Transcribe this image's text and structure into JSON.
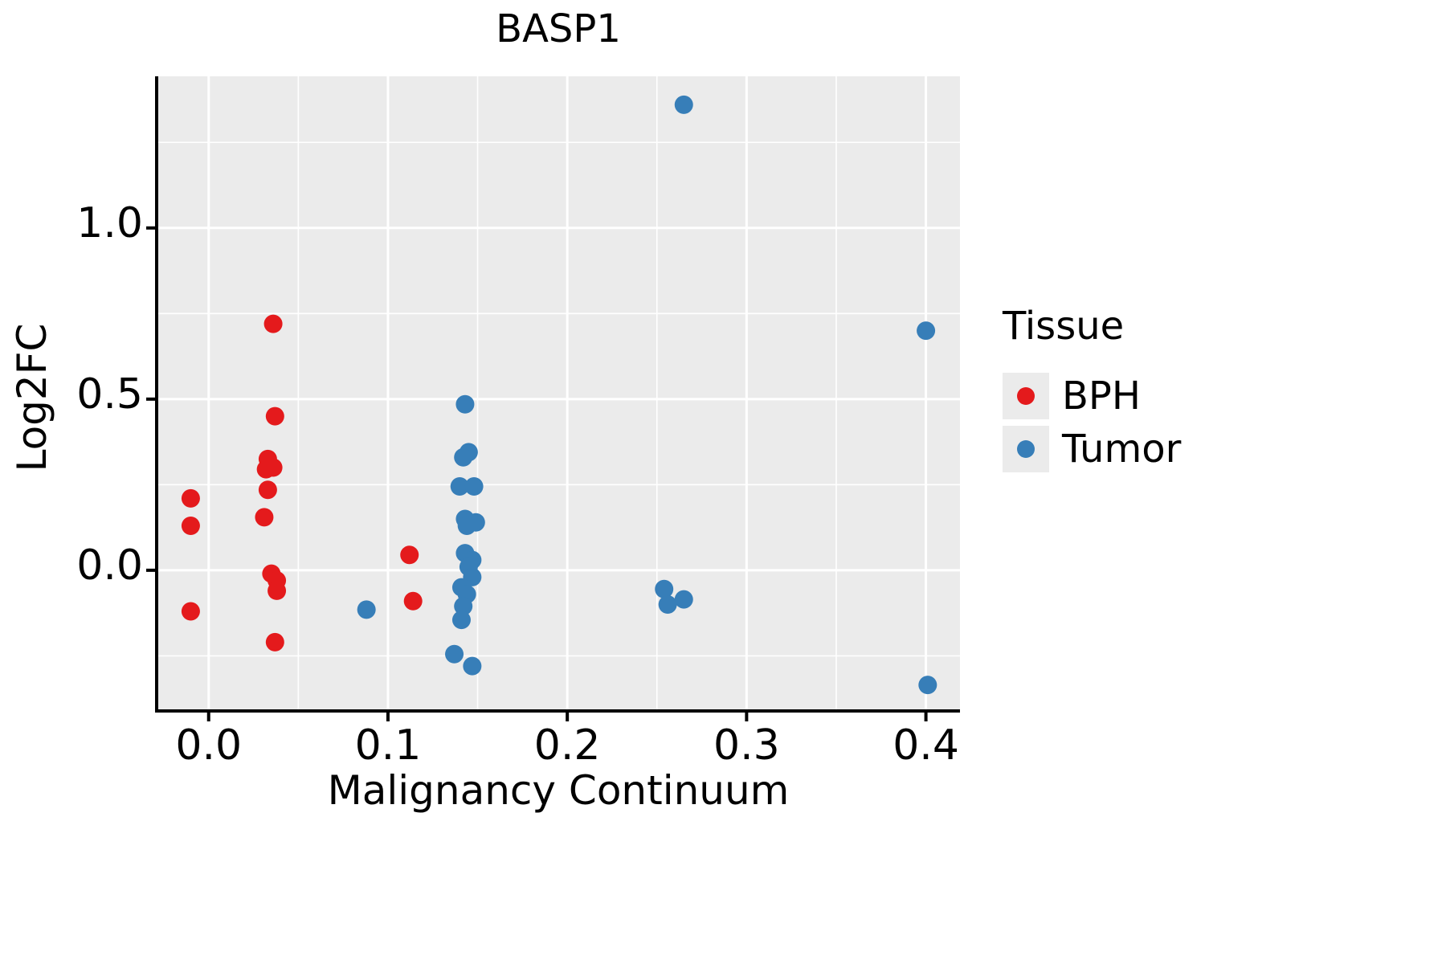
{
  "chart_data": {
    "type": "scatter",
    "title": "BASP1",
    "xlabel": "Malignancy Continuum",
    "ylabel": "Log2FC",
    "xlim": [
      -0.029,
      0.419
    ],
    "ylim": [
      -0.411,
      1.443
    ],
    "xticks": [
      0.0,
      0.1,
      0.2,
      0.3,
      0.4
    ],
    "yticks": [
      0.0,
      0.5,
      1.0
    ],
    "xminor": [
      0.05,
      0.15,
      0.25,
      0.35
    ],
    "yminor": [
      -0.25,
      0.25,
      0.75,
      1.25
    ],
    "grid": true,
    "panel_color": "#EBEBEB",
    "grid_color": "#FFFFFF",
    "point_radius": 11.5,
    "legend": {
      "title": "Tissue",
      "position": "right",
      "entries": [
        {
          "label": "BPH",
          "color": "#E41A1C"
        },
        {
          "label": "Tumor",
          "color": "#377EB8"
        }
      ]
    },
    "series": [
      {
        "name": "BPH",
        "color": "#E41A1C",
        "points": [
          [
            -0.01,
            0.21
          ],
          [
            -0.01,
            0.13
          ],
          [
            -0.01,
            -0.12
          ],
          [
            0.036,
            0.72
          ],
          [
            0.037,
            0.45
          ],
          [
            0.033,
            0.325
          ],
          [
            0.036,
            0.3
          ],
          [
            0.032,
            0.295
          ],
          [
            0.033,
            0.235
          ],
          [
            0.031,
            0.155
          ],
          [
            0.035,
            -0.01
          ],
          [
            0.038,
            -0.03
          ],
          [
            0.038,
            -0.06
          ],
          [
            0.037,
            -0.21
          ],
          [
            0.112,
            0.045
          ],
          [
            0.114,
            -0.09
          ]
        ]
      },
      {
        "name": "Tumor",
        "color": "#377EB8",
        "points": [
          [
            0.265,
            1.36
          ],
          [
            0.4,
            0.7
          ],
          [
            0.143,
            0.485
          ],
          [
            0.145,
            0.345
          ],
          [
            0.142,
            0.33
          ],
          [
            0.14,
            0.245
          ],
          [
            0.148,
            0.245
          ],
          [
            0.143,
            0.15
          ],
          [
            0.149,
            0.14
          ],
          [
            0.144,
            0.13
          ],
          [
            0.143,
            0.05
          ],
          [
            0.147,
            0.03
          ],
          [
            0.145,
            0.01
          ],
          [
            0.147,
            -0.02
          ],
          [
            0.141,
            -0.05
          ],
          [
            0.144,
            -0.07
          ],
          [
            0.142,
            -0.105
          ],
          [
            0.141,
            -0.145
          ],
          [
            0.137,
            -0.245
          ],
          [
            0.147,
            -0.28
          ],
          [
            0.088,
            -0.115
          ],
          [
            0.254,
            -0.055
          ],
          [
            0.256,
            -0.1
          ],
          [
            0.265,
            -0.085
          ],
          [
            0.401,
            -0.335
          ]
        ]
      }
    ]
  }
}
